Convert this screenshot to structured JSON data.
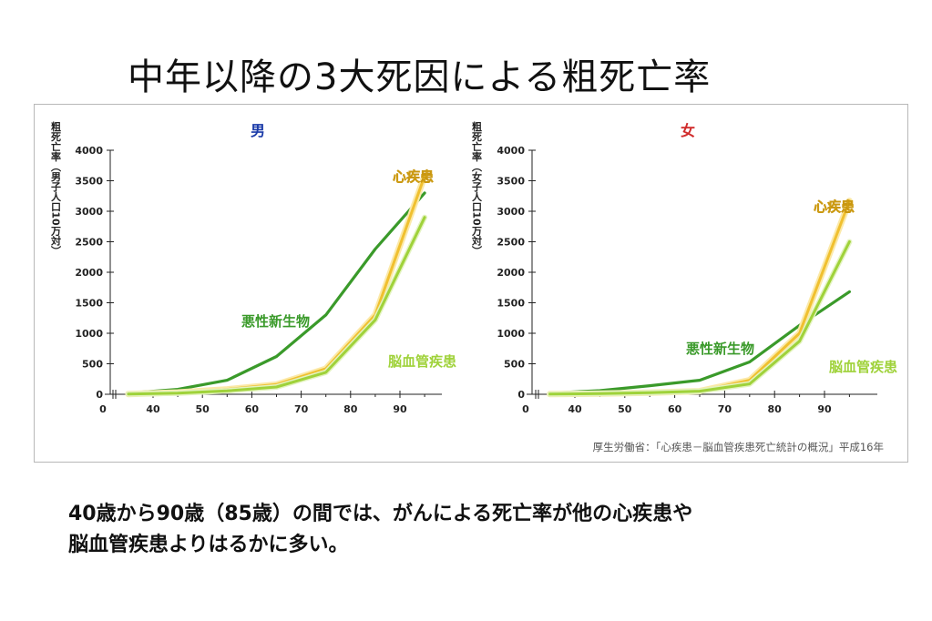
{
  "slide": {
    "title": "中年以降の3大死因による粗死亡率",
    "caption_line1": "40歳から90歳（85歳）の間では、がんによる死亡率が他の心疾患や",
    "caption_line2": "脳血管疾患よりはるかに多い。"
  },
  "colors": {
    "cancer": "#3a9a2a",
    "heart": "#f0c030",
    "heart_outline": "#fbe9a8",
    "stroke": "#9fd23a",
    "title_male": "#1a3aa8",
    "title_female": "#d02a2a",
    "axis": "#222222"
  },
  "chart_data": [
    {
      "type": "line",
      "title": "男",
      "ylabel": "粗死亡率（男子人口10万対）",
      "xlabel": "",
      "xlim": [
        0,
        100
      ],
      "ylim": [
        0,
        4000
      ],
      "x_ticks": [
        "0",
        "40",
        "50",
        "60",
        "70",
        "80",
        "90"
      ],
      "y_ticks": [
        "0",
        "500",
        "1000",
        "1500",
        "2000",
        "2500",
        "3000",
        "3500",
        "4000"
      ],
      "series": [
        {
          "name": "悪性新生物",
          "color_key": "cancer",
          "x": [
            35,
            45,
            55,
            65,
            75,
            85,
            95
          ],
          "y": [
            20,
            80,
            230,
            620,
            1300,
            2380,
            3300
          ]
        },
        {
          "name": "心疾患",
          "color_key": "heart",
          "x": [
            35,
            45,
            55,
            65,
            75,
            85,
            95
          ],
          "y": [
            5,
            30,
            80,
            160,
            420,
            1300,
            3580
          ]
        },
        {
          "name": "脳血管疾患",
          "color_key": "stroke",
          "x": [
            35,
            45,
            55,
            65,
            75,
            85,
            95
          ],
          "y": [
            5,
            20,
            55,
            120,
            360,
            1220,
            2900
          ]
        }
      ]
    },
    {
      "type": "line",
      "title": "女",
      "ylabel": "粗死亡率（女子人口10万対）",
      "xlabel": "",
      "xlim": [
        0,
        100
      ],
      "ylim": [
        0,
        4000
      ],
      "x_ticks": [
        "0",
        "40",
        "50",
        "60",
        "70",
        "80",
        "90"
      ],
      "y_ticks": [
        "0",
        "500",
        "1000",
        "1500",
        "2000",
        "2500",
        "3000",
        "3500",
        "4000"
      ],
      "series": [
        {
          "name": "悪性新生物",
          "color_key": "cancer",
          "x": [
            35,
            45,
            55,
            65,
            75,
            85,
            95
          ],
          "y": [
            20,
            60,
            140,
            230,
            530,
            1130,
            1680
          ]
        },
        {
          "name": "心疾患",
          "color_key": "heart",
          "x": [
            35,
            45,
            55,
            65,
            75,
            85,
            95
          ],
          "y": [
            3,
            10,
            25,
            50,
            230,
            1000,
            3170
          ]
        },
        {
          "name": "脳血管疾患",
          "color_key": "stroke",
          "x": [
            35,
            45,
            55,
            65,
            75,
            85,
            95
          ],
          "y": [
            3,
            10,
            25,
            50,
            170,
            870,
            2500
          ]
        }
      ]
    }
  ],
  "labels": {
    "male_heart": "心疾患",
    "male_cancer": "悪性新生物",
    "male_stroke": "脳血管疾患",
    "female_heart": "心疾患",
    "female_cancer": "悪性新生物",
    "female_stroke": "脳血管疾患"
  },
  "source": "厚生労働省：「心疾患－脳血管疾患死亡統計の概況」平成16年"
}
